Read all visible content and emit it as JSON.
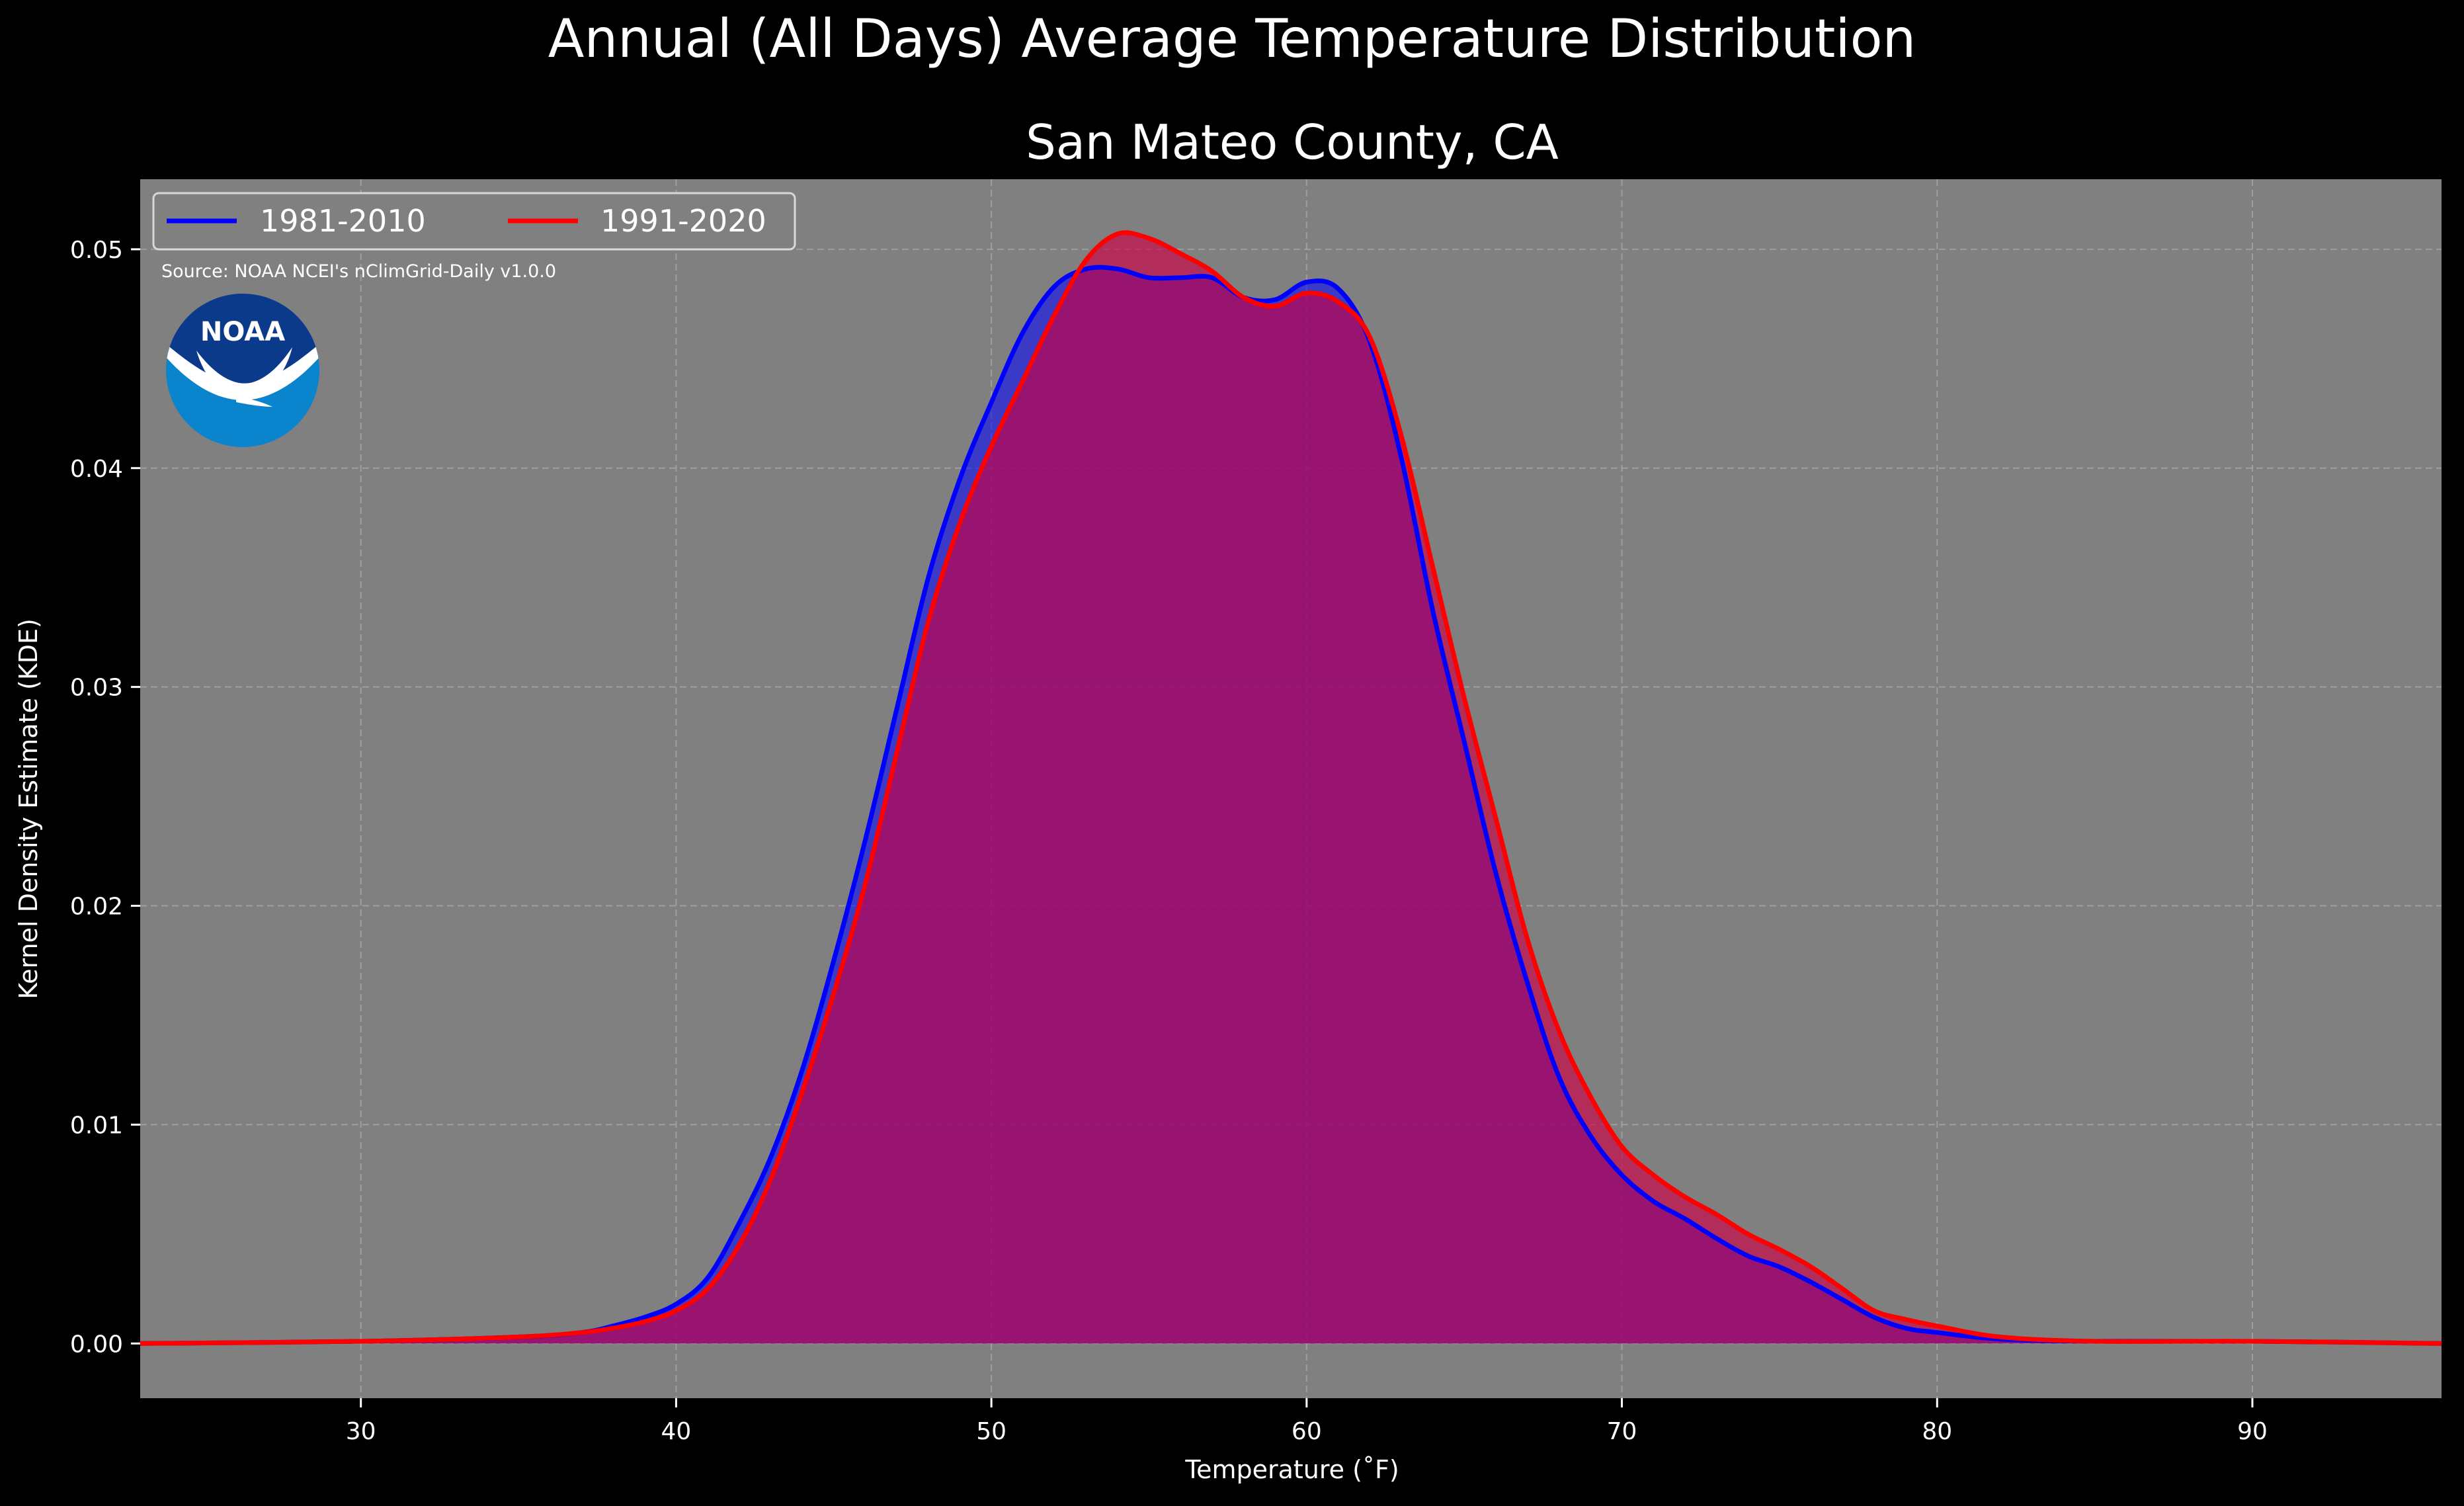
{
  "figure": {
    "suptitle": "Annual (All Days) Average Temperature Distribution",
    "source": "Source: NOAA NCEI's nClimGrid-Daily v1.0.0",
    "logo_text": "NOAA"
  },
  "chart_data": {
    "type": "area",
    "title": "San Mateo County, CA",
    "xlabel": "Temperature ($^\\circ$F)",
    "xlabel_display": "Temperature (˚F)",
    "ylabel": "Kernel Density Estimate (KDE)",
    "xlim": [
      23,
      96
    ],
    "ylim": [
      -0.0025,
      0.0532
    ],
    "xticks": [
      30,
      40,
      50,
      60,
      70,
      80,
      90
    ],
    "yticks": [
      0.0,
      0.01,
      0.02,
      0.03,
      0.04,
      0.05
    ],
    "ytick_labels": [
      "0.00",
      "0.01",
      "0.02",
      "0.03",
      "0.04",
      "0.05"
    ],
    "grid": true,
    "legend_position": "top-left",
    "colors": {
      "plot_bg": "#808080",
      "figure_bg": "#000000",
      "grid": "#b3b3b3"
    },
    "series": [
      {
        "name": "1981-2010",
        "color": "#0000ff",
        "fill": "#0000ff",
        "x": [
          23,
          30,
          35,
          37,
          38,
          39,
          40,
          41,
          42,
          43,
          44,
          45,
          46,
          47,
          48,
          49,
          50,
          51,
          52,
          53,
          54,
          55,
          56,
          57,
          58,
          59,
          60,
          61,
          62,
          63,
          64,
          65,
          66,
          67,
          68,
          69,
          70,
          71,
          72,
          73,
          74,
          75,
          76,
          77,
          78,
          79,
          80,
          82,
          85,
          90,
          96
        ],
        "y": [
          0.0,
          0.0001,
          0.0003,
          0.0005,
          0.0008,
          0.0012,
          0.0018,
          0.003,
          0.0055,
          0.0085,
          0.0125,
          0.0175,
          0.023,
          0.029,
          0.035,
          0.0395,
          0.043,
          0.0462,
          0.0483,
          0.0491,
          0.0491,
          0.0487,
          0.0487,
          0.0487,
          0.0478,
          0.0477,
          0.0485,
          0.0482,
          0.0458,
          0.0405,
          0.0335,
          0.0275,
          0.0215,
          0.0165,
          0.0122,
          0.0095,
          0.0077,
          0.0065,
          0.0057,
          0.0048,
          0.004,
          0.0035,
          0.0028,
          0.002,
          0.0012,
          0.0007,
          0.0005,
          0.0002,
          0.0001,
          0.0001,
          0.0
        ]
      },
      {
        "name": "1991-2020",
        "color": "#ff0000",
        "fill": "#cc0044",
        "x": [
          23,
          30,
          35,
          37,
          38,
          39,
          40,
          41,
          42,
          43,
          44,
          45,
          46,
          47,
          48,
          49,
          50,
          51,
          52,
          53,
          54,
          55,
          56,
          57,
          58,
          59,
          60,
          61,
          62,
          63,
          64,
          65,
          66,
          67,
          68,
          69,
          70,
          71,
          72,
          73,
          74,
          75,
          76,
          77,
          78,
          79,
          80,
          82,
          85,
          90,
          96
        ],
        "y": [
          0.0,
          0.0001,
          0.0003,
          0.0005,
          0.0007,
          0.001,
          0.0015,
          0.0025,
          0.0045,
          0.0075,
          0.0115,
          0.016,
          0.021,
          0.027,
          0.033,
          0.0375,
          0.041,
          0.044,
          0.047,
          0.0495,
          0.0507,
          0.0505,
          0.0498,
          0.049,
          0.0478,
          0.0474,
          0.048,
          0.0476,
          0.046,
          0.0415,
          0.0355,
          0.0295,
          0.024,
          0.0185,
          0.0143,
          0.0113,
          0.009,
          0.0077,
          0.0067,
          0.0059,
          0.005,
          0.0043,
          0.0035,
          0.0025,
          0.0015,
          0.0011,
          0.0008,
          0.0003,
          0.0001,
          0.0001,
          0.0
        ]
      }
    ]
  }
}
